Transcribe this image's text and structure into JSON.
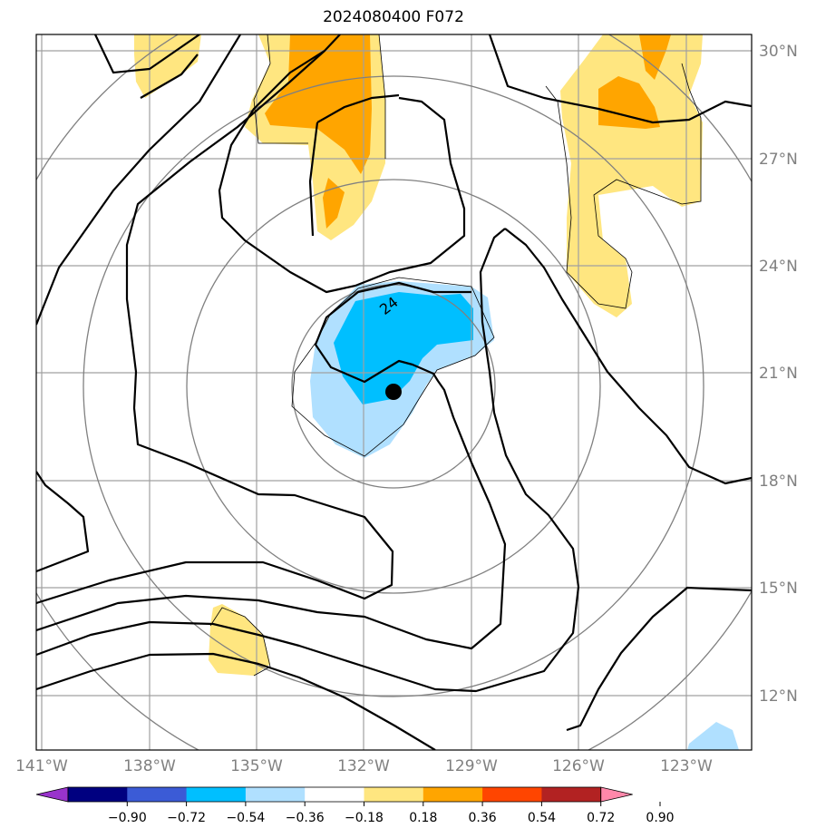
{
  "title": "2024080400 F072",
  "lat_labels": [
    "30°N",
    "27°N",
    "24°N",
    "21°N",
    "18°N",
    "15°N",
    "12°N"
  ],
  "lon_labels": [
    "141°W",
    "138°W",
    "135°W",
    "132°W",
    "129°W",
    "126°W",
    "123°W"
  ],
  "contour_label": "24",
  "colorbar": {
    "ticks": [
      "−0.90",
      "−0.72",
      "−0.54",
      "−0.36",
      "−0.18",
      "0.18",
      "0.36",
      "0.54",
      "0.72",
      "0.90"
    ],
    "colors": [
      "#9933cc",
      "#000080",
      "#3b5bd6",
      "#00bfff",
      "#b0e0ff",
      "#ffffff",
      "#ffe680",
      "#ffa500",
      "#ff4500",
      "#b22222",
      "#ff88aa"
    ]
  },
  "colors": {
    "grid": "#a0a0a0",
    "range_rings": "#808080",
    "contour": "#000000",
    "center_marker": "#000000"
  },
  "center_marker": "storm-center"
}
